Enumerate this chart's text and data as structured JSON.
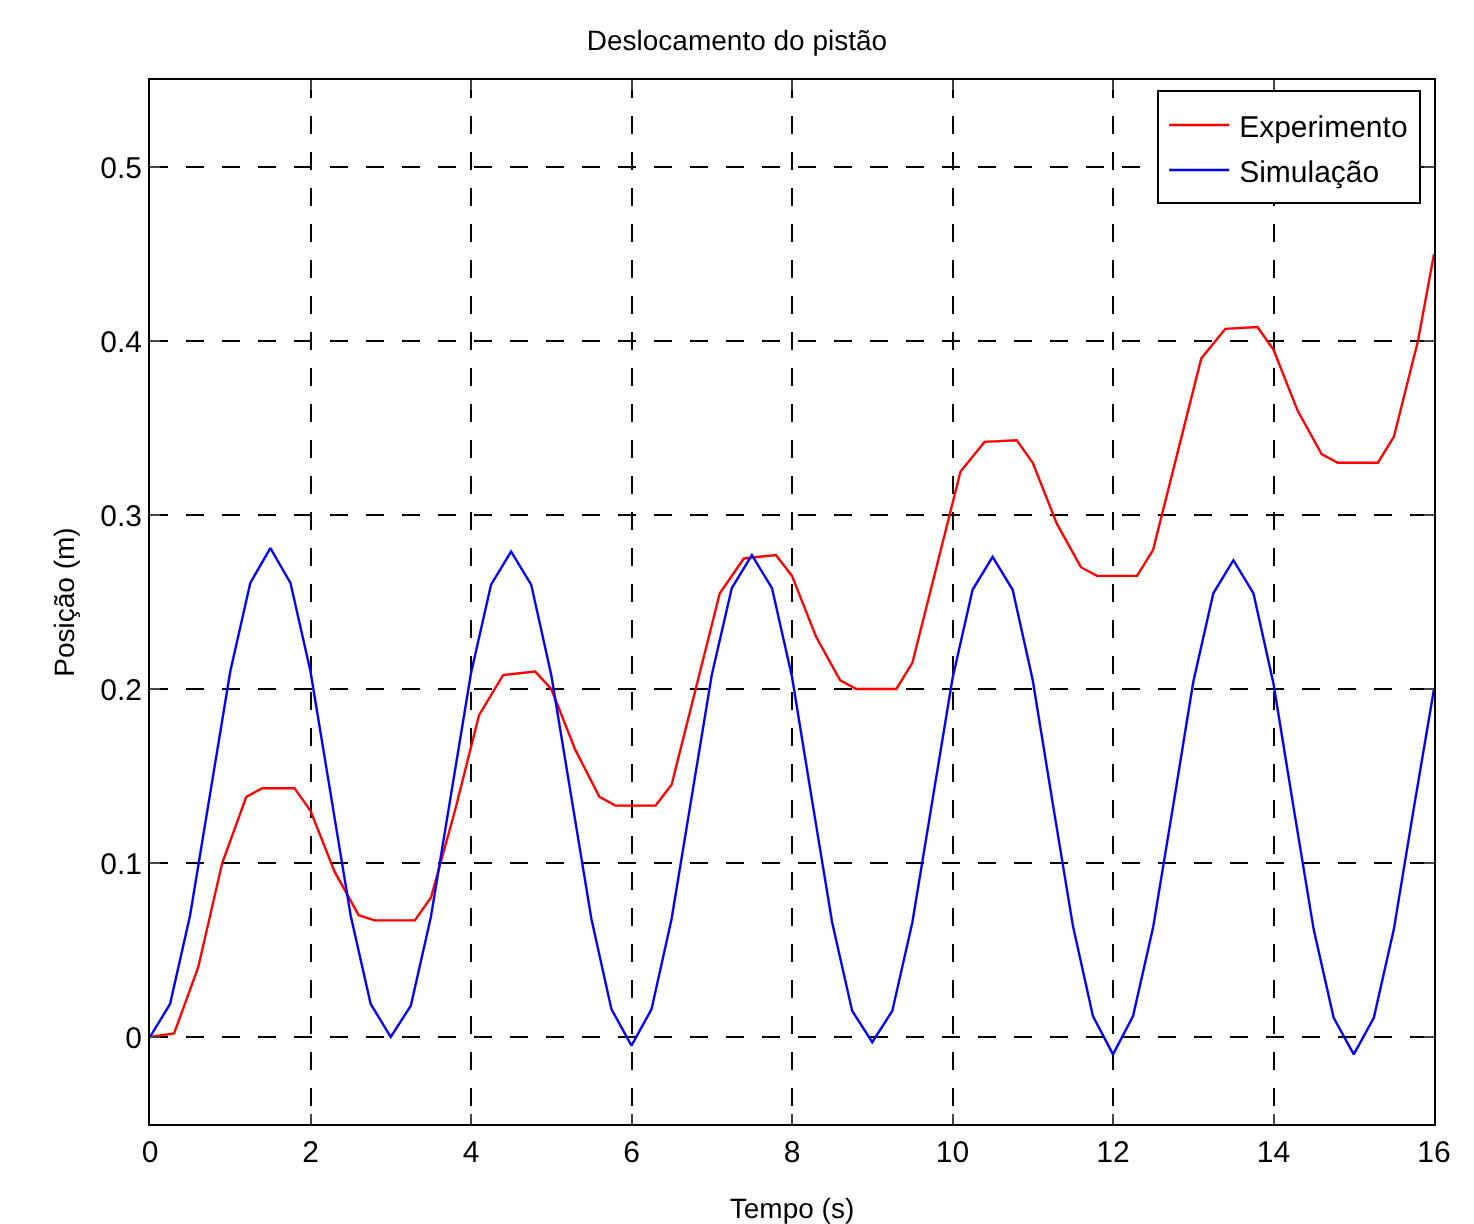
{
  "chart_data": {
    "type": "line",
    "title": "Deslocamento do pistão",
    "xlabel": "Tempo (s)",
    "ylabel": "Posição (m)",
    "xlim": [
      0,
      16
    ],
    "xticks": [
      0,
      2,
      4,
      6,
      8,
      10,
      12,
      14,
      16
    ],
    "ylim": [
      -0.05,
      0.55
    ],
    "yticks": [
      0,
      0.1,
      0.2,
      0.3,
      0.4,
      0.5
    ],
    "grid": true,
    "legend": "top right",
    "line_style": "solid",
    "marker": "none",
    "series": [
      {
        "name": "Experimento",
        "color": "#ff0000",
        "x": [
          0,
          0.3,
          0.6,
          0.9,
          1.2,
          1.4,
          1.8,
          2.0,
          2.3,
          2.6,
          2.8,
          3.3,
          3.5,
          3.8,
          4.1,
          4.4,
          4.8,
          5.0,
          5.3,
          5.6,
          5.8,
          6.3,
          6.5,
          6.8,
          7.1,
          7.4,
          7.8,
          8.0,
          8.3,
          8.6,
          8.8,
          9.3,
          9.5,
          9.8,
          10.1,
          10.4,
          10.8,
          11.0,
          11.3,
          11.6,
          11.8,
          12.3,
          12.5,
          12.8,
          13.1,
          13.4,
          13.8,
          14.0,
          14.3,
          14.6,
          14.8,
          15.3,
          15.5,
          15.8,
          16
        ],
        "values": [
          0,
          0.002,
          0.04,
          0.1,
          0.138,
          0.143,
          0.143,
          0.13,
          0.095,
          0.07,
          0.067,
          0.067,
          0.08,
          0.13,
          0.185,
          0.208,
          0.21,
          0.2,
          0.165,
          0.138,
          0.133,
          0.133,
          0.145,
          0.2,
          0.255,
          0.275,
          0.277,
          0.265,
          0.23,
          0.205,
          0.2,
          0.2,
          0.215,
          0.27,
          0.325,
          0.342,
          0.343,
          0.33,
          0.295,
          0.27,
          0.265,
          0.265,
          0.28,
          0.335,
          0.39,
          0.407,
          0.408,
          0.395,
          0.36,
          0.335,
          0.33,
          0.33,
          0.345,
          0.4,
          0.45
        ]
      },
      {
        "name": "Simulação",
        "color": "#0000ff",
        "x": [
          0,
          0.25,
          0.5,
          0.75,
          1,
          1.25,
          1.5,
          1.75,
          2,
          2.25,
          2.5,
          2.75,
          3,
          3.25,
          3.5,
          3.75,
          4,
          4.25,
          4.5,
          4.75,
          5,
          5.25,
          5.5,
          5.75,
          6,
          6.25,
          6.5,
          6.75,
          7,
          7.25,
          7.5,
          7.75,
          8,
          8.25,
          8.5,
          8.75,
          9,
          9.25,
          9.5,
          9.75,
          10,
          10.25,
          10.5,
          10.75,
          11,
          11.25,
          11.5,
          11.75,
          12,
          12.25,
          12.5,
          12.75,
          13,
          13.25,
          13.5,
          13.75,
          14,
          14.25,
          14.5,
          14.75,
          15,
          15.25,
          15.5,
          15.75,
          16
        ],
        "values": [
          0,
          0.019,
          0.07,
          0.14,
          0.21,
          0.261,
          0.281,
          0.261,
          0.21,
          0.14,
          0.07,
          0.019,
          0,
          0.018,
          0.069,
          0.139,
          0.209,
          0.26,
          0.279,
          0.26,
          0.208,
          0.138,
          0.068,
          0.016,
          -0.005,
          0.016,
          0.068,
          0.138,
          0.208,
          0.258,
          0.277,
          0.258,
          0.207,
          0.136,
          0.066,
          0.015,
          -0.003,
          0.015,
          0.066,
          0.136,
          0.206,
          0.257,
          0.276,
          0.257,
          0.205,
          0.134,
          0.064,
          0.012,
          -0.01,
          0.012,
          0.063,
          0.133,
          0.204,
          0.255,
          0.274,
          0.255,
          0.203,
          0.132,
          0.062,
          0.011,
          -0.01,
          0.011,
          0.062,
          0.132,
          0.2
        ]
      }
    ]
  }
}
